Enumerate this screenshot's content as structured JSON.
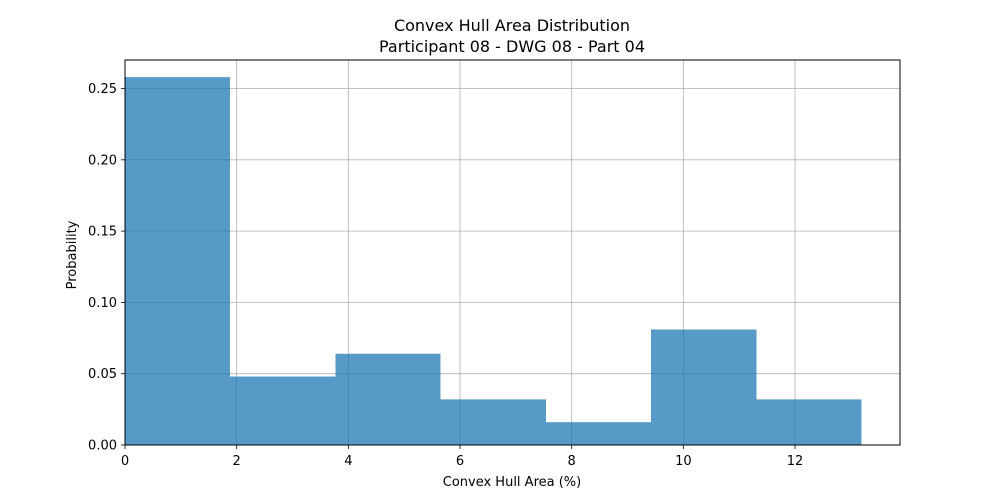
{
  "chart_data": {
    "type": "bar",
    "title": "Convex Hull Area Distribution",
    "subtitle": "Participant 08 - DWG 08 - Part 04",
    "xlabel": "Convex Hull Area (%)",
    "ylabel": "Probability",
    "xlim": [
      0,
      13.88
    ],
    "ylim": [
      0,
      0.27
    ],
    "x_ticks": [
      0,
      2,
      4,
      6,
      8,
      10,
      12
    ],
    "y_ticks": [
      0.0,
      0.05,
      0.1,
      0.15,
      0.2,
      0.25
    ],
    "grid": true,
    "bar_color": "#1f77b4",
    "bar_opacity": 0.75,
    "bins": [
      {
        "x0": 0.0,
        "x1": 1.88,
        "value": 0.258
      },
      {
        "x0": 1.88,
        "x1": 3.77,
        "value": 0.048
      },
      {
        "x0": 3.77,
        "x1": 5.65,
        "value": 0.064
      },
      {
        "x0": 5.65,
        "x1": 7.54,
        "value": 0.032
      },
      {
        "x0": 7.54,
        "x1": 9.42,
        "value": 0.016
      },
      {
        "x0": 9.42,
        "x1": 11.31,
        "value": 0.081
      },
      {
        "x0": 11.31,
        "x1": 13.19,
        "value": 0.032
      }
    ]
  }
}
